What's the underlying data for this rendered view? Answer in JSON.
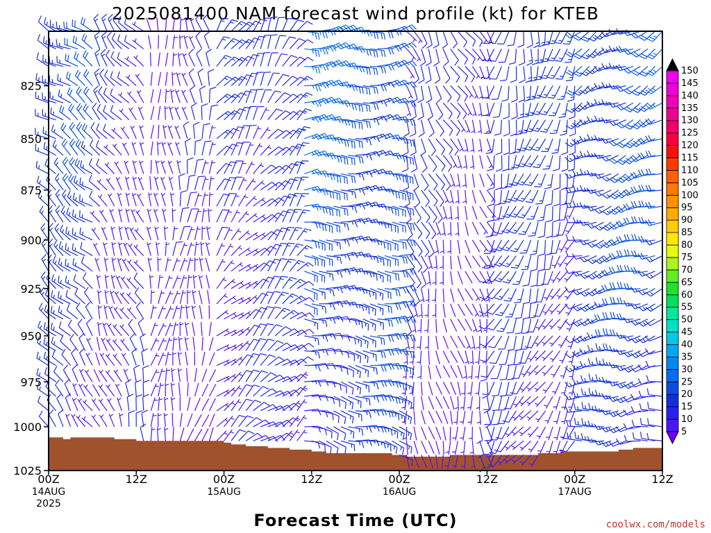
{
  "chart_data": {
    "type": "wind-barb-time-height",
    "title": "2025081400 NAM forecast wind profile (kt) for KTEB",
    "xlabel": "Forecast Time (UTC)",
    "ylabel": "",
    "credit": "coolwx.com/models",
    "x_ticks": [
      {
        "hour": 0,
        "lines": [
          "00Z",
          "14AUG",
          "2025"
        ]
      },
      {
        "hour": 12,
        "lines": [
          "12Z"
        ]
      },
      {
        "hour": 24,
        "lines": [
          "00Z",
          "15AUG"
        ]
      },
      {
        "hour": 36,
        "lines": [
          "12Z"
        ]
      },
      {
        "hour": 48,
        "lines": [
          "00Z",
          "16AUG"
        ]
      },
      {
        "hour": 60,
        "lines": [
          "12Z"
        ]
      },
      {
        "hour": 72,
        "lines": [
          "00Z",
          "17AUG"
        ]
      },
      {
        "hour": 84,
        "lines": [
          "12Z"
        ]
      }
    ],
    "xlim": [
      0,
      84
    ],
    "y_ticks": [
      825,
      850,
      875,
      900,
      925,
      950,
      975,
      1000,
      1025
    ],
    "ylim_hpa": [
      800,
      1025
    ],
    "y_scale": "log-pressure (inverted)",
    "surface_pressure_hpa": [
      [
        0,
        1006
      ],
      [
        1,
        1006
      ],
      [
        2,
        1007
      ],
      [
        3,
        1006
      ],
      [
        4,
        1006
      ],
      [
        5,
        1006
      ],
      [
        6,
        1006
      ],
      [
        7,
        1006
      ],
      [
        8,
        1006
      ],
      [
        9,
        1007
      ],
      [
        10,
        1007
      ],
      [
        11,
        1007
      ],
      [
        12,
        1008
      ],
      [
        13,
        1008
      ],
      [
        14,
        1008
      ],
      [
        15,
        1008
      ],
      [
        16,
        1008
      ],
      [
        17,
        1008
      ],
      [
        18,
        1008
      ],
      [
        19,
        1008
      ],
      [
        20,
        1008
      ],
      [
        21,
        1008
      ],
      [
        22,
        1008
      ],
      [
        23,
        1008
      ],
      [
        24,
        1009
      ],
      [
        25,
        1010
      ],
      [
        26,
        1010
      ],
      [
        27,
        1011
      ],
      [
        28,
        1011
      ],
      [
        29,
        1011
      ],
      [
        30,
        1012
      ],
      [
        31,
        1012
      ],
      [
        32,
        1012
      ],
      [
        33,
        1013
      ],
      [
        34,
        1013
      ],
      [
        35,
        1013
      ],
      [
        36,
        1014
      ],
      [
        37,
        1014
      ],
      [
        38,
        1015
      ],
      [
        39,
        1015
      ],
      [
        40,
        1015
      ],
      [
        41,
        1015
      ],
      [
        42,
        1015
      ],
      [
        43,
        1015
      ],
      [
        44,
        1015
      ],
      [
        45,
        1015
      ],
      [
        46,
        1015
      ],
      [
        47,
        1016
      ],
      [
        48,
        1016
      ],
      [
        49,
        1017
      ],
      [
        50,
        1017
      ],
      [
        51,
        1017
      ],
      [
        52,
        1017
      ],
      [
        53,
        1017
      ],
      [
        54,
        1017
      ],
      [
        55,
        1016
      ],
      [
        56,
        1016
      ],
      [
        57,
        1016
      ],
      [
        58,
        1016
      ],
      [
        59,
        1016
      ],
      [
        60,
        1016
      ],
      [
        61,
        1016
      ],
      [
        62,
        1016
      ],
      [
        63,
        1016
      ],
      [
        64,
        1016
      ],
      [
        65,
        1016
      ],
      [
        66,
        1016
      ],
      [
        67,
        1015
      ],
      [
        68,
        1015
      ],
      [
        69,
        1015
      ],
      [
        70,
        1014
      ],
      [
        71,
        1014
      ],
      [
        72,
        1014
      ],
      [
        73,
        1014
      ],
      [
        74,
        1014
      ],
      [
        75,
        1014
      ],
      [
        76,
        1014
      ],
      [
        77,
        1014
      ],
      [
        78,
        1013
      ],
      [
        79,
        1013
      ],
      [
        80,
        1012
      ],
      [
        81,
        1012
      ],
      [
        82,
        1012
      ],
      [
        83,
        1012
      ],
      [
        84,
        1013
      ]
    ],
    "colorbar": {
      "units": "kt",
      "levels": [
        5,
        10,
        15,
        20,
        25,
        30,
        35,
        40,
        45,
        50,
        55,
        60,
        65,
        70,
        75,
        80,
        85,
        90,
        95,
        100,
        105,
        110,
        115,
        120,
        125,
        130,
        135,
        140,
        145,
        150
      ],
      "colors": [
        "#6e00ff",
        "#4d14ff",
        "#2a20f0",
        "#1230d8",
        "#0a4ee0",
        "#0a6cf0",
        "#0088f5",
        "#00a8f5",
        "#00c8e6",
        "#00e0c8",
        "#00e89a",
        "#00e060",
        "#20e030",
        "#60ee20",
        "#a8f520",
        "#e8fa10",
        "#ffe800",
        "#ffcc00",
        "#ffaa00",
        "#ff9000",
        "#ff7800",
        "#ff6000",
        "#ff3c00",
        "#ff1010",
        "#f80040",
        "#f0006a",
        "#f00090",
        "#f000b8",
        "#f000d8",
        "#f000f0"
      ]
    },
    "barb_hours": [
      0,
      1,
      2,
      3,
      4,
      5,
      6,
      7,
      8,
      9,
      10,
      11,
      12,
      13,
      14,
      15,
      16,
      17,
      18,
      19,
      20,
      21,
      22,
      23,
      24,
      25,
      26,
      27,
      28,
      29,
      30,
      31,
      32,
      33,
      34,
      35,
      36,
      37,
      38,
      39,
      40,
      41,
      42,
      43,
      44,
      45,
      46,
      47,
      48,
      49,
      50,
      51,
      52,
      53,
      54,
      55,
      56,
      57,
      58,
      59,
      60,
      61,
      62,
      63,
      64,
      65,
      66,
      67,
      68,
      69,
      70,
      71,
      72,
      73,
      74,
      75,
      76,
      77,
      78,
      79,
      80,
      81,
      82,
      83,
      84
    ],
    "barb_levels_hpa": [
      800,
      808,
      816,
      825,
      833,
      841,
      850,
      858,
      867,
      875,
      883,
      891,
      900,
      908,
      916,
      925,
      933,
      941,
      950,
      958,
      966,
      975,
      983,
      991,
      1000,
      1008,
      1016,
      1025
    ],
    "wind_regimes": [
      {
        "hours": [
          0,
          6
        ],
        "description": "northwesterly",
        "dir_deg": 300,
        "speed_kt": 15
      },
      {
        "hours": [
          7,
          13
        ],
        "description": "northwesterly weakening",
        "dir_deg": 320,
        "speed_kt": 10
      },
      {
        "hours": [
          14,
          22
        ],
        "description": "northerly light",
        "dir_deg": 350,
        "speed_kt": 6
      },
      {
        "hours": [
          23,
          34
        ],
        "description": "northeasterly",
        "dir_deg": 30,
        "speed_kt": 12
      },
      {
        "hours": [
          35,
          48
        ],
        "description": "easterly",
        "dir_deg": 80,
        "speed_kt": 20
      },
      {
        "hours": [
          49,
          60
        ],
        "description": "southeasterly light",
        "dir_deg": 150,
        "speed_kt": 8
      },
      {
        "hours": [
          61,
          72
        ],
        "description": "southerly",
        "dir_deg": 190,
        "speed_kt": 12
      },
      {
        "hours": [
          73,
          84
        ],
        "description": "southwesterly",
        "dir_deg": 240,
        "speed_kt": 18
      }
    ]
  }
}
